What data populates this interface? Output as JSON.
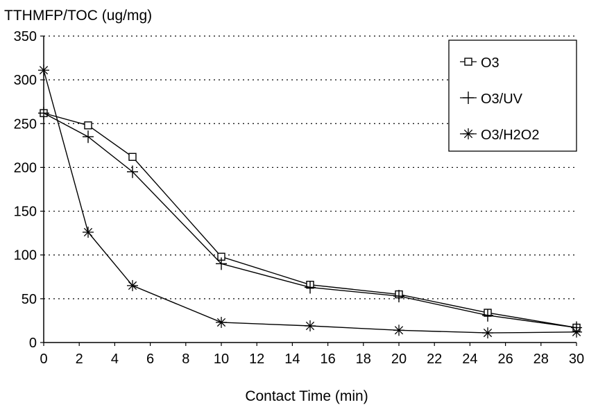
{
  "chart_data": {
    "type": "line",
    "title": "",
    "ylabel": "TTHMFP/TOC (ug/mg)",
    "xlabel": "Contact Time (min)",
    "xlim": [
      0,
      30
    ],
    "ylim": [
      0,
      350
    ],
    "xticks": [
      "0",
      "2",
      "4",
      "6",
      "8",
      "10",
      "12",
      "14",
      "16",
      "18",
      "20",
      "22",
      "24",
      "26",
      "28",
      "30"
    ],
    "yticks": [
      "0",
      "50",
      "100",
      "150",
      "200",
      "250",
      "300",
      "350"
    ],
    "grid": "horizontal dotted",
    "legend_position": "top-right",
    "series": [
      {
        "name": "O3",
        "marker": "square",
        "x": [
          0,
          2.5,
          5,
          10,
          15,
          20,
          25,
          30
        ],
        "y": [
          262,
          248,
          212,
          98,
          66,
          55,
          34,
          17
        ]
      },
      {
        "name": "O3/UV",
        "marker": "plus",
        "x": [
          0,
          2.5,
          5,
          10,
          15,
          20,
          25,
          30
        ],
        "y": [
          262,
          235,
          195,
          90,
          63,
          53,
          31,
          17
        ]
      },
      {
        "name": "O3/H2O2",
        "marker": "asterisk",
        "x": [
          0,
          2.5,
          5,
          10,
          15,
          20,
          25,
          30
        ],
        "y": [
          311,
          126,
          65,
          23,
          19,
          14,
          11,
          12
        ]
      }
    ]
  }
}
